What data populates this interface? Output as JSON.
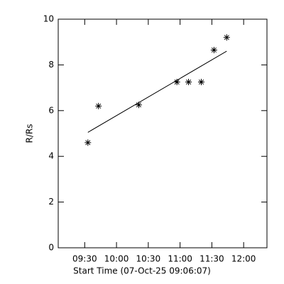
{
  "chart_data": {
    "type": "scatter",
    "xlabel": "Start Time (07-Oct-25 09:06:07)",
    "ylabel": "R/Rs",
    "series": [
      {
        "color": "#000000",
        "marker": "asterisk",
        "x": [
          573,
          583,
          621,
          657,
          668,
          680,
          692,
          704
        ],
        "values": [
          4.6,
          6.2,
          6.25,
          7.25,
          7.25,
          7.25,
          8.65,
          9.2
        ]
      }
    ],
    "fit_line": {
      "x": [
        573,
        704
      ],
      "values": [
        5.05,
        8.6
      ],
      "color": "#000000"
    },
    "xlim": [
      545,
      742
    ],
    "xticks": [
      {
        "value": 570,
        "label": "09:30"
      },
      {
        "value": 600,
        "label": "10:00"
      },
      {
        "value": 630,
        "label": "10:30"
      },
      {
        "value": 660,
        "label": "11:00"
      },
      {
        "value": 690,
        "label": "11:30"
      },
      {
        "value": 720,
        "label": "12:00"
      }
    ],
    "ylim": [
      0,
      10
    ],
    "yticks": [
      0,
      2,
      4,
      6,
      8,
      10
    ],
    "grid": false
  }
}
